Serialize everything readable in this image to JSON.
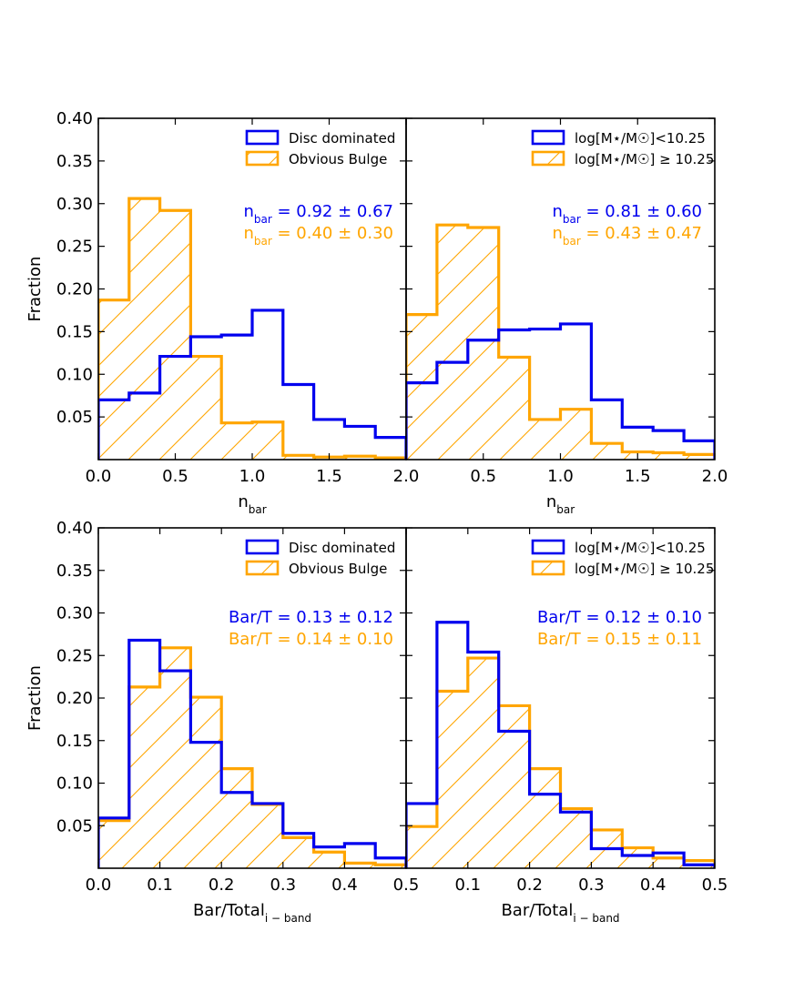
{
  "figure": {
    "blue_color": "#0000ee",
    "orange_color": "#ffa500",
    "hatch": "diagonal-forward"
  },
  "chart_data": [
    {
      "type": "histogram",
      "xlim": [
        0.0,
        2.0
      ],
      "ylim": [
        0.0,
        0.4
      ],
      "xticks": [
        "0.0",
        "0.5",
        "1.0",
        "1.5",
        "2.0"
      ],
      "yticks": [
        "0.05",
        "0.10",
        "0.15",
        "0.20",
        "0.25",
        "0.30",
        "0.35",
        "0.40"
      ],
      "ylabel": "Fraction",
      "xlabel": {
        "main": "n",
        "sub": "bar"
      },
      "bin_edges": [
        0.0,
        0.2,
        0.4,
        0.6,
        0.8,
        1.0,
        1.2,
        1.4,
        1.6,
        1.8,
        2.0
      ],
      "series": [
        {
          "name": "Disc dominated",
          "color": "#0000ee",
          "hatched": false,
          "values": [
            0.07,
            0.078,
            0.121,
            0.144,
            0.146,
            0.175,
            0.088,
            0.047,
            0.039,
            0.026
          ]
        },
        {
          "name": "Obvious Bulge",
          "color": "#ffa500",
          "hatched": true,
          "values": [
            0.187,
            0.306,
            0.292,
            0.121,
            0.043,
            0.044,
            0.005,
            0.003,
            0.004,
            0.002
          ]
        }
      ],
      "annotations": [
        {
          "main": "n",
          "sub": "bar",
          "rest": " = 0.92 ± 0.67",
          "color": "#0000ee"
        },
        {
          "main": "n",
          "sub": "bar",
          "rest": " = 0.40 ± 0.30",
          "color": "#ffa500"
        }
      ],
      "legend_location": "top-right"
    },
    {
      "type": "histogram",
      "xlim": [
        0.0,
        2.0
      ],
      "ylim": [
        0.0,
        0.4
      ],
      "xticks": [
        "0.0",
        "0.5",
        "1.0",
        "1.5",
        "2.0"
      ],
      "xticks_shown": [
        "",
        "0.5",
        "1.0",
        "1.5",
        "2.0"
      ],
      "yticks": [],
      "ylabel": "",
      "xlabel": {
        "main": "n",
        "sub": "bar"
      },
      "bin_edges": [
        0.0,
        0.2,
        0.4,
        0.6,
        0.8,
        1.0,
        1.2,
        1.4,
        1.6,
        1.8,
        2.0
      ],
      "series": [
        {
          "name": "log[M⋆/M☉]<10.25",
          "color": "#0000ee",
          "hatched": false,
          "values": [
            0.09,
            0.114,
            0.14,
            0.152,
            0.153,
            0.159,
            0.07,
            0.038,
            0.034,
            0.022
          ]
        },
        {
          "name": "log[M⋆/M☉] ≥ 10.25",
          "color": "#ffa500",
          "hatched": true,
          "values": [
            0.17,
            0.275,
            0.272,
            0.12,
            0.047,
            0.059,
            0.019,
            0.009,
            0.008,
            0.006
          ]
        }
      ],
      "annotations": [
        {
          "main": "n",
          "sub": "bar",
          "rest": " = 0.81 ± 0.60",
          "color": "#0000ee"
        },
        {
          "main": "n",
          "sub": "bar",
          "rest": " = 0.43 ± 0.47",
          "color": "#ffa500"
        }
      ],
      "legend_location": "top-right"
    },
    {
      "type": "histogram",
      "xlim": [
        0.0,
        0.5
      ],
      "ylim": [
        0.0,
        0.4
      ],
      "xticks": [
        "0.0",
        "0.1",
        "0.2",
        "0.3",
        "0.4",
        "0.5"
      ],
      "yticks": [
        "0.05",
        "0.10",
        "0.15",
        "0.20",
        "0.25",
        "0.30",
        "0.35",
        "0.40"
      ],
      "ylabel": "Fraction",
      "xlabel": {
        "main": "Bar/Total",
        "sub": "i − band"
      },
      "bin_edges": [
        0.0,
        0.05,
        0.1,
        0.15,
        0.2,
        0.25,
        0.3,
        0.35,
        0.4,
        0.45,
        0.5
      ],
      "series": [
        {
          "name": "Disc dominated",
          "color": "#0000ee",
          "hatched": false,
          "values": [
            0.059,
            0.268,
            0.232,
            0.148,
            0.089,
            0.076,
            0.041,
            0.025,
            0.029,
            0.012
          ]
        },
        {
          "name": "Obvious Bulge",
          "color": "#ffa500",
          "hatched": true,
          "values": [
            0.056,
            0.213,
            0.259,
            0.201,
            0.117,
            0.075,
            0.036,
            0.019,
            0.006,
            0.004
          ]
        }
      ],
      "annotations": [
        {
          "main": "Bar/T",
          "sub": "",
          "rest": " = 0.13 ± 0.12",
          "color": "#0000ee"
        },
        {
          "main": "Bar/T",
          "sub": "",
          "rest": " = 0.14 ± 0.10",
          "color": "#ffa500"
        }
      ],
      "legend_location": "top-right"
    },
    {
      "type": "histogram",
      "xlim": [
        0.0,
        0.5
      ],
      "ylim": [
        0.0,
        0.4
      ],
      "xticks": [
        "0.0",
        "0.1",
        "0.2",
        "0.3",
        "0.4",
        "0.5"
      ],
      "xticks_shown": [
        "",
        "0.1",
        "0.2",
        "0.3",
        "0.4",
        "0.5"
      ],
      "yticks": [],
      "ylabel": "",
      "xlabel": {
        "main": "Bar/Total",
        "sub": "i − band"
      },
      "bin_edges": [
        0.0,
        0.05,
        0.1,
        0.15,
        0.2,
        0.25,
        0.3,
        0.35,
        0.4,
        0.45,
        0.5
      ],
      "series": [
        {
          "name": "log[M⋆/M☉]<10.25",
          "color": "#0000ee",
          "hatched": false,
          "values": [
            0.076,
            0.289,
            0.254,
            0.161,
            0.087,
            0.066,
            0.023,
            0.015,
            0.018,
            0.004
          ]
        },
        {
          "name": "log[M⋆/M☉] ≥ 10.25",
          "color": "#ffa500",
          "hatched": true,
          "values": [
            0.049,
            0.208,
            0.247,
            0.191,
            0.117,
            0.07,
            0.045,
            0.024,
            0.012,
            0.009
          ]
        }
      ],
      "annotations": [
        {
          "main": "Bar/T",
          "sub": "",
          "rest": " = 0.12 ± 0.10",
          "color": "#0000ee"
        },
        {
          "main": "Bar/T",
          "sub": "",
          "rest": " = 0.15 ± 0.11",
          "color": "#ffa500"
        }
      ],
      "legend_location": "top-right"
    }
  ]
}
